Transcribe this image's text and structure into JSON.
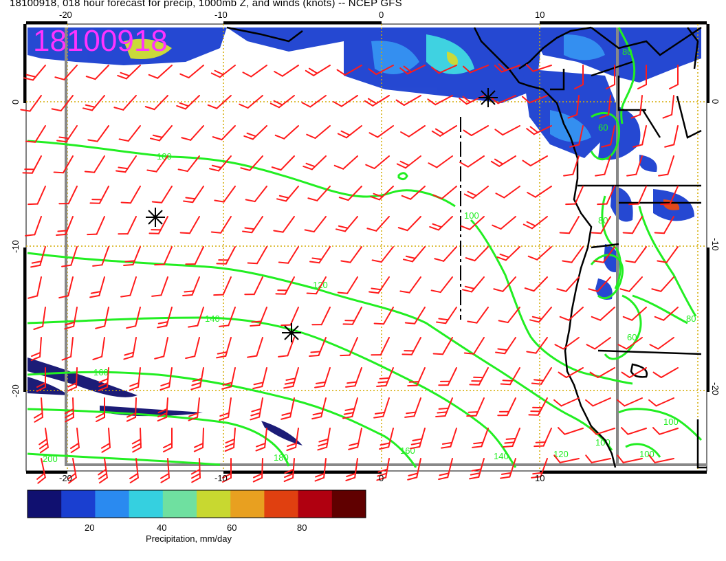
{
  "title": "18100918, 018 hour forecast for precip, 1000mb Z, and winds (knots) -- NCEP GFS",
  "stamp": "18100918",
  "axes": {
    "top_lon_labels": [
      "-20",
      "-10",
      "0",
      "10"
    ],
    "bottom_lon_labels": [
      "-20",
      "-10",
      "0",
      "10"
    ],
    "left_lat_labels": [
      "0",
      "-10",
      "-20"
    ],
    "right_lat_labels": [
      "0",
      "-10",
      "-20"
    ]
  },
  "contours": {
    "color": "#22ee22",
    "labels": [
      "100",
      "100",
      "120",
      "140",
      "160",
      "160",
      "180",
      "200",
      "140",
      "120",
      "100",
      "100",
      "80",
      "60",
      "80",
      "60",
      "100",
      "80"
    ]
  },
  "colorbar": {
    "label": "Precipitation, mm/day",
    "ticks": [
      "20",
      "40",
      "60",
      "80"
    ],
    "colors": [
      "#101070",
      "#1a3fd0",
      "#2a8af0",
      "#35d0e0",
      "#6fe0a0",
      "#c8d830",
      "#e8a020",
      "#e04010",
      "#b00010",
      "#600000"
    ]
  },
  "markers": {
    "type": "low-asterisk",
    "count": 3
  },
  "colors": {
    "barbs": "#ff1a1a",
    "coast": "#000000",
    "grid": "#d4aa00",
    "frame": "#888888"
  }
}
